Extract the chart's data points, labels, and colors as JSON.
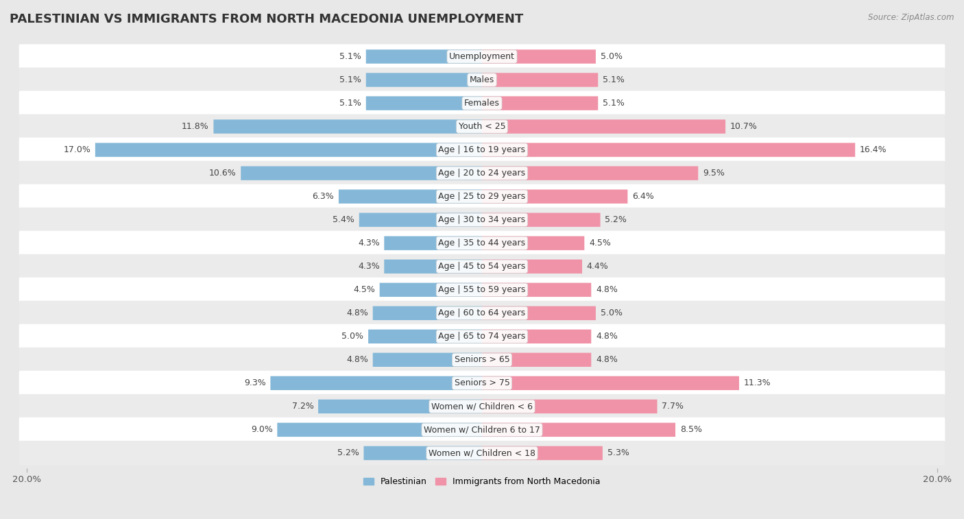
{
  "title": "PALESTINIAN VS IMMIGRANTS FROM NORTH MACEDONIA UNEMPLOYMENT",
  "source": "Source: ZipAtlas.com",
  "categories": [
    "Unemployment",
    "Males",
    "Females",
    "Youth < 25",
    "Age | 16 to 19 years",
    "Age | 20 to 24 years",
    "Age | 25 to 29 years",
    "Age | 30 to 34 years",
    "Age | 35 to 44 years",
    "Age | 45 to 54 years",
    "Age | 55 to 59 years",
    "Age | 60 to 64 years",
    "Age | 65 to 74 years",
    "Seniors > 65",
    "Seniors > 75",
    "Women w/ Children < 6",
    "Women w/ Children 6 to 17",
    "Women w/ Children < 18"
  ],
  "palestinian_values": [
    5.1,
    5.1,
    5.1,
    11.8,
    17.0,
    10.6,
    6.3,
    5.4,
    4.3,
    4.3,
    4.5,
    4.8,
    5.0,
    4.8,
    9.3,
    7.2,
    9.0,
    5.2
  ],
  "macedonia_values": [
    5.0,
    5.1,
    5.1,
    10.7,
    16.4,
    9.5,
    6.4,
    5.2,
    4.5,
    4.4,
    4.8,
    5.0,
    4.8,
    4.8,
    11.3,
    7.7,
    8.5,
    5.3
  ],
  "palestinian_color": "#85b8d8",
  "macedonia_color": "#f093a8",
  "row_color_odd": "#ffffff",
  "row_color_even": "#ebebeb",
  "background_color": "#e8e8e8",
  "axis_max": 20.0,
  "bar_height": 0.6,
  "title_fontsize": 13,
  "label_fontsize": 9,
  "value_fontsize": 9,
  "legend_fontsize": 9
}
